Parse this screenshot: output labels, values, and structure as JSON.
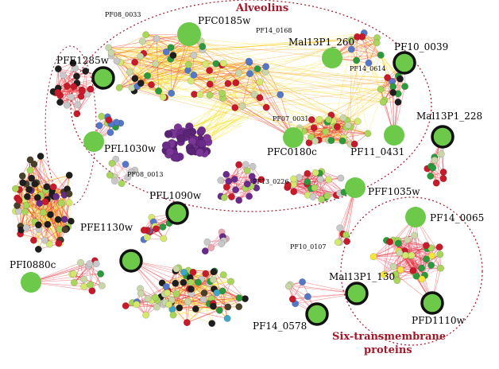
{
  "regions": {
    "alveolins": {
      "label": "Alveolins",
      "color": "#a0182a"
    },
    "six_tm": {
      "label_line1": "Six-transmembrane",
      "label_line2": "proteins",
      "color": "#a0182a"
    }
  },
  "hub_labels": {
    "PFC0185w": "PFC0185w",
    "PF08_0033": "PF08_0033",
    "PF14_0168": "PF14_0168",
    "Mal13P1_260": "Mal13P1_260",
    "PF10_0039": "PF10_0039",
    "PF14_0614": "PF14_0614",
    "PFE1285w": "PFE1285w",
    "PF07_0031": "PF07_0031",
    "Mal13P1_228": "Mal13P1_228",
    "PFL1030w": "PFL1030w",
    "PFC0180c": "PFC0180c",
    "PF11_0431": "PF11_0431",
    "PF08_0013": "PF08_0013",
    "PF13_0226": "PF13_0226",
    "PFF1035w": "PFF1035w",
    "PFL1090w": "PFL1090w",
    "PF14_0065": "PF14_0065",
    "PFE1130w": "PFE1130w",
    "PF10_0107": "PF10_0107",
    "PFI0880c": "PFI0880c",
    "Mal13P1_130": "Mal13P1_130",
    "PFD1110w": "PFD1110w",
    "PF14_0578": "PF14_0578"
  },
  "colors": {
    "hub_fill": "#6cc94a",
    "hub_ring": "#111111",
    "edge_red": "#e8202a",
    "edge_yellow": "#f6e11c",
    "edge_orange": "#f39a1e",
    "edge_pink": "#e76b86",
    "node_palette": [
      "#1e1e1e",
      "#c71a2a",
      "#2a9a3c",
      "#a8d65a",
      "#d4e870",
      "#c8d6a8",
      "#5577c8",
      "#c8c8c8",
      "#6a2a8a",
      "#3fa6c8",
      "#f2e63a",
      "#e65da0",
      "#4a3f2a",
      "#e7a8b0"
    ]
  }
}
